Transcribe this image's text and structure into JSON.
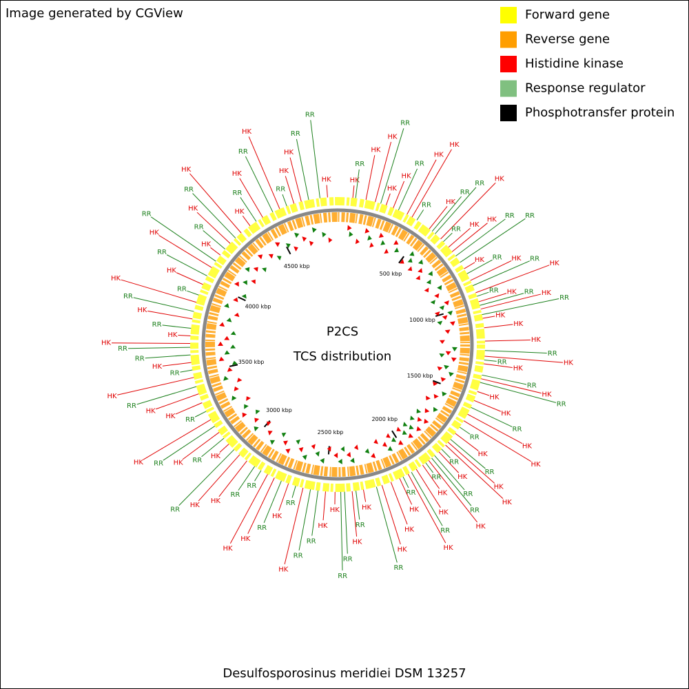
{
  "header": {
    "credit": "Image generated by CGView"
  },
  "legend": [
    {
      "name": "Forward gene",
      "color": "#ffff00"
    },
    {
      "name": "Reverse gene",
      "color": "#ff9e00"
    },
    {
      "name": "Histidine kinase",
      "color": "#ff0000"
    },
    {
      "name": "Response regulator",
      "color": "#80c080"
    },
    {
      "name": "Phosphotransfer protein",
      "color": "#000000"
    }
  ],
  "center": {
    "title": "P2CS",
    "subtitle": "TCS distribution"
  },
  "caption": "Desulfosporosinus meridiei DSM 13257",
  "scale": {
    "range": [
      0,
      4873
    ],
    "ticks": [
      {
        "value": 500,
        "label": "500 kbp"
      },
      {
        "value": 1000,
        "label": "1000 kbp"
      },
      {
        "value": 1500,
        "label": "1500 kbp"
      },
      {
        "value": 2000,
        "label": "2000 kbp"
      },
      {
        "value": 2500,
        "label": "2500 kbp"
      },
      {
        "value": 3000,
        "label": "3000 kbp"
      },
      {
        "value": 3500,
        "label": "3500 kbp"
      },
      {
        "value": 4000,
        "label": "4000 kbp"
      },
      {
        "value": 4500,
        "label": "4500 kbp"
      }
    ]
  },
  "label_colors": {
    "HK": "#e00000",
    "RR": "#1a7f1a"
  },
  "features": [
    {
      "label": "HK",
      "kbp": 80
    },
    {
      "label": "RR",
      "kbp": 95
    },
    {
      "label": "HK",
      "kbp": 150
    },
    {
      "label": "HK",
      "kbp": 200
    },
    {
      "label": "RR",
      "kbp": 230
    },
    {
      "label": "HK",
      "kbp": 260
    },
    {
      "label": "HK",
      "kbp": 300
    },
    {
      "label": "RR",
      "kbp": 330
    },
    {
      "label": "HK",
      "kbp": 380
    },
    {
      "label": "HK",
      "kbp": 410
    },
    {
      "label": "RR",
      "kbp": 440
    },
    {
      "label": "HK",
      "kbp": 520
    },
    {
      "label": "RR",
      "kbp": 540
    },
    {
      "label": "RR",
      "kbp": 560
    },
    {
      "label": "HK",
      "kbp": 600
    },
    {
      "label": "RR",
      "kbp": 620
    },
    {
      "label": "HK",
      "kbp": 660
    },
    {
      "label": "HK",
      "kbp": 690
    },
    {
      "label": "RR",
      "kbp": 720
    },
    {
      "label": "RR",
      "kbp": 760
    },
    {
      "label": "HK",
      "kbp": 800
    },
    {
      "label": "RR",
      "kbp": 830
    },
    {
      "label": "HK",
      "kbp": 870
    },
    {
      "label": "RR",
      "kbp": 900
    },
    {
      "label": "HK",
      "kbp": 940
    },
    {
      "label": "RR",
      "kbp": 960
    },
    {
      "label": "HK",
      "kbp": 990
    },
    {
      "label": "RR",
      "kbp": 1010
    },
    {
      "label": "HK",
      "kbp": 1030
    },
    {
      "label": "RR",
      "kbp": 1060
    },
    {
      "label": "HK",
      "kbp": 1080
    },
    {
      "label": "HK",
      "kbp": 1130
    },
    {
      "label": "HK",
      "kbp": 1200
    },
    {
      "label": "RR",
      "kbp": 1250
    },
    {
      "label": "HK",
      "kbp": 1280
    },
    {
      "label": "RR",
      "kbp": 1300
    },
    {
      "label": "HK",
      "kbp": 1320
    },
    {
      "label": "RR",
      "kbp": 1380
    },
    {
      "label": "HK",
      "kbp": 1400
    },
    {
      "label": "RR",
      "kbp": 1420
    },
    {
      "label": "HK",
      "kbp": 1470
    },
    {
      "label": "HK",
      "kbp": 1520
    },
    {
      "label": "RR",
      "kbp": 1560
    },
    {
      "label": "HK",
      "kbp": 1600
    },
    {
      "label": "HK",
      "kbp": 1640
    },
    {
      "label": "RR",
      "kbp": 1680
    },
    {
      "label": "HK",
      "kbp": 1720
    },
    {
      "label": "RR",
      "kbp": 1760
    },
    {
      "label": "HK",
      "kbp": 1780
    },
    {
      "label": "HK",
      "kbp": 1800
    },
    {
      "label": "RR",
      "kbp": 1830
    },
    {
      "label": "HK",
      "kbp": 1850
    },
    {
      "label": "RR",
      "kbp": 1880
    },
    {
      "label": "RR",
      "kbp": 1900
    },
    {
      "label": "HK",
      "kbp": 1920
    },
    {
      "label": "RR",
      "kbp": 1940
    },
    {
      "label": "HK",
      "kbp": 1960
    },
    {
      "label": "HK",
      "kbp": 2000
    },
    {
      "label": "RR",
      "kbp": 2030
    },
    {
      "label": "HK",
      "kbp": 2050
    },
    {
      "label": "RR",
      "kbp": 2080
    },
    {
      "label": "HK",
      "kbp": 2100
    },
    {
      "label": "HK",
      "kbp": 2150
    },
    {
      "label": "HK",
      "kbp": 2200
    },
    {
      "label": "RR",
      "kbp": 2230
    },
    {
      "label": "HK",
      "kbp": 2300
    },
    {
      "label": "RR",
      "kbp": 2340
    },
    {
      "label": "HK",
      "kbp": 2360
    },
    {
      "label": "RR",
      "kbp": 2400
    },
    {
      "label": "RR",
      "kbp": 2420
    },
    {
      "label": "HK",
      "kbp": 2450
    },
    {
      "label": "HK",
      "kbp": 2500
    },
    {
      "label": "RR",
      "kbp": 2540
    },
    {
      "label": "RR",
      "kbp": 2580
    },
    {
      "label": "HK",
      "kbp": 2620
    },
    {
      "label": "RR",
      "kbp": 2660
    },
    {
      "label": "HK",
      "kbp": 2700
    },
    {
      "label": "RR",
      "kbp": 2740
    },
    {
      "label": "HK",
      "kbp": 2780
    },
    {
      "label": "HK",
      "kbp": 2820
    },
    {
      "label": "RR",
      "kbp": 2860
    },
    {
      "label": "RR",
      "kbp": 2900
    },
    {
      "label": "HK",
      "kbp": 2950
    },
    {
      "label": "HK",
      "kbp": 3000
    },
    {
      "label": "RR",
      "kbp": 3040
    },
    {
      "label": "HK",
      "kbp": 3080
    },
    {
      "label": "RR",
      "kbp": 3120
    },
    {
      "label": "HK",
      "kbp": 3160
    },
    {
      "label": "RR",
      "kbp": 3200
    },
    {
      "label": "HK",
      "kbp": 3240
    },
    {
      "label": "RR",
      "kbp": 3290
    },
    {
      "label": "HK",
      "kbp": 3340
    },
    {
      "label": "HK",
      "kbp": 3390
    },
    {
      "label": "RR",
      "kbp": 3430
    },
    {
      "label": "HK",
      "kbp": 3480
    },
    {
      "label": "RR",
      "kbp": 3520
    },
    {
      "label": "HK",
      "kbp": 3560
    },
    {
      "label": "RR",
      "kbp": 3600
    },
    {
      "label": "RR",
      "kbp": 3640
    },
    {
      "label": "HK",
      "kbp": 3660
    },
    {
      "label": "HK",
      "kbp": 3700
    },
    {
      "label": "RR",
      "kbp": 3740
    },
    {
      "label": "HK",
      "kbp": 3790
    },
    {
      "label": "RR",
      "kbp": 3830
    },
    {
      "label": "HK",
      "kbp": 3880
    },
    {
      "label": "RR",
      "kbp": 3920
    },
    {
      "label": "HK",
      "kbp": 3980
    },
    {
      "label": "RR",
      "kbp": 4030
    },
    {
      "label": "HK",
      "kbp": 4080
    },
    {
      "label": "RR",
      "kbp": 4120
    },
    {
      "label": "HK",
      "kbp": 4160
    },
    {
      "label": "RR",
      "kbp": 4200
    },
    {
      "label": "HK",
      "kbp": 4240
    },
    {
      "label": "RR",
      "kbp": 4280
    },
    {
      "label": "HK",
      "kbp": 4320
    },
    {
      "label": "HK",
      "kbp": 4380
    },
    {
      "label": "RR",
      "kbp": 4420
    },
    {
      "label": "HK",
      "kbp": 4460
    },
    {
      "label": "RR",
      "kbp": 4520
    },
    {
      "label": "HK",
      "kbp": 4560
    },
    {
      "label": "RR",
      "kbp": 4600
    },
    {
      "label": "HK",
      "kbp": 4640
    },
    {
      "label": "HK",
      "kbp": 4680
    },
    {
      "label": "RR",
      "kbp": 4720
    },
    {
      "label": "RR",
      "kbp": 4780
    },
    {
      "label": "HK",
      "kbp": 4820
    }
  ]
}
